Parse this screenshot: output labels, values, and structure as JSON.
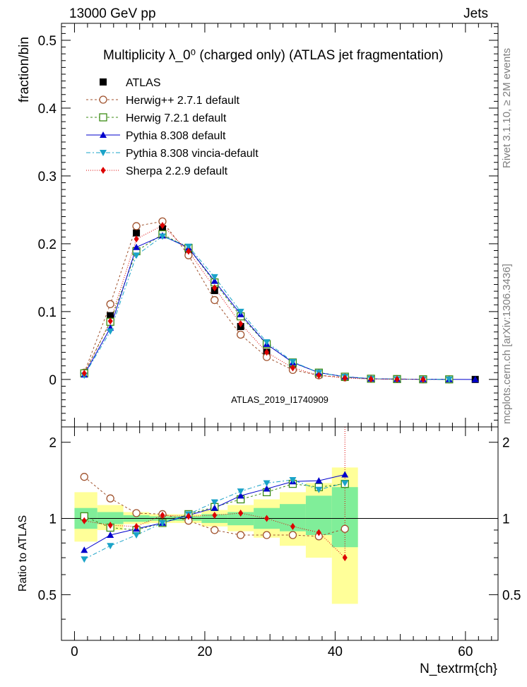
{
  "header": {
    "left": "13000 GeV pp",
    "right": "Jets"
  },
  "side_text": {
    "rivet": "Rivet 3.1.10, ≥ 2M events",
    "mcplots": "mcplots.cern.ch [arXiv:1306.3436]"
  },
  "watermark": "ATLAS_2019_I1740909",
  "chart_data": {
    "type": "line",
    "title": "Multiplicity λ_0⁰ (charged only) (ATLAS jet fragmentation)",
    "xlabel": "N_textrm{ch}",
    "ylabel": "fraction/bin",
    "ratio_ylabel": "Ratio to ATLAS",
    "xlim": [
      -2,
      65
    ],
    "ylim": [
      -0.07,
      0.525
    ],
    "ratio_ylim": [
      0.33,
      2.3
    ],
    "xticks": [
      "0",
      "20",
      "40",
      "60"
    ],
    "yticks": [
      "0",
      "0.1",
      "0.2",
      "0.3",
      "0.4",
      "0.5"
    ],
    "ratio_yticks": [
      "0.5",
      "1",
      "2"
    ],
    "x": [
      1.5,
      5.5,
      9.5,
      13.5,
      17.5,
      21.5,
      25.5,
      29.5,
      33.5,
      37.5,
      41.5,
      45.5,
      49.5,
      53.5,
      57.5,
      61.5
    ],
    "data": {
      "name": "ATLAS",
      "values": [
        0.009,
        0.094,
        0.216,
        0.222,
        0.188,
        0.131,
        0.078,
        0.04,
        0.018,
        0.007,
        0.003,
        0.001,
        0.0005,
        0.0002,
        0.0001,
        0.0
      ]
    },
    "series": [
      {
        "name": "Herwig++ 2.7.1 default",
        "color": "#a0522d",
        "marker": "circle-open",
        "dash": "3,3",
        "values": [
          0.01,
          0.111,
          0.226,
          0.233,
          0.183,
          0.117,
          0.066,
          0.033,
          0.014,
          0.006,
          0.003,
          0.001,
          0.0005,
          0.0002,
          0.0001,
          null
        ],
        "ratio": [
          1.46,
          1.2,
          1.05,
          1.04,
          0.98,
          0.9,
          0.86,
          0.86,
          0.86,
          0.85,
          0.91,
          null,
          null,
          null,
          null,
          null
        ]
      },
      {
        "name": "Herwig 7.2.1 default",
        "color": "#3c8c14",
        "marker": "square-open",
        "dash": "3,3",
        "values": [
          0.009,
          0.085,
          0.189,
          0.214,
          0.194,
          0.143,
          0.093,
          0.052,
          0.025,
          0.01,
          0.004,
          0.001,
          0.0005,
          0.0002,
          0.0001,
          null
        ],
        "ratio": [
          1.02,
          0.92,
          0.9,
          0.96,
          1.04,
          1.11,
          1.19,
          1.27,
          1.37,
          1.33,
          1.37,
          null,
          null,
          null,
          null,
          null
        ]
      },
      {
        "name": "Pythia 8.308 default",
        "color": "#0000cc",
        "marker": "triangle-up",
        "dash": "",
        "values": [
          0.007,
          0.076,
          0.195,
          0.212,
          0.194,
          0.145,
          0.096,
          0.052,
          0.025,
          0.01,
          0.004,
          0.001,
          0.0005,
          0.0002,
          0.0001,
          0.0
        ],
        "ratio": [
          0.75,
          0.86,
          0.91,
          0.96,
          1.03,
          1.1,
          1.23,
          1.31,
          1.4,
          1.41,
          1.49,
          null,
          null,
          null,
          null,
          null
        ]
      },
      {
        "name": "Pythia 8.308 vincia-default",
        "color": "#1aa3c8",
        "marker": "triangle-down",
        "dash": "6,3,2,3",
        "values": [
          0.006,
          0.071,
          0.183,
          0.211,
          0.196,
          0.151,
          0.1,
          0.055,
          0.026,
          0.01,
          0.004,
          0.001,
          0.0005,
          0.0002,
          0.0001,
          null
        ],
        "ratio": [
          0.69,
          0.78,
          0.86,
          0.96,
          1.04,
          1.16,
          1.28,
          1.38,
          1.42,
          1.3,
          1.38,
          null,
          null,
          null,
          null,
          null
        ]
      },
      {
        "name": "Sherpa 2.2.9 default",
        "color": "#dd0000",
        "marker": "diamond",
        "dash": "1,2",
        "values": [
          0.009,
          0.086,
          0.207,
          0.227,
          0.189,
          0.135,
          0.082,
          0.04,
          0.017,
          0.006,
          0.002,
          0.0005,
          0.0002,
          0.0001,
          null,
          null
        ],
        "ratio": [
          0.98,
          0.94,
          0.93,
          1.03,
          1.02,
          1.03,
          1.05,
          1.0,
          0.93,
          0.88,
          0.7,
          null,
          null,
          null,
          null,
          null
        ]
      }
    ],
    "bands": {
      "edges": [
        0,
        3.5,
        7.5,
        11.5,
        15.5,
        19.5,
        23.5,
        27.5,
        31.5,
        35.5,
        39.5,
        43.5
      ],
      "stat_low": [
        0.91,
        0.95,
        0.97,
        0.98,
        0.98,
        0.96,
        0.94,
        0.91,
        0.89,
        0.86,
        0.77
      ],
      "stat_high": [
        1.1,
        1.06,
        1.03,
        1.02,
        1.02,
        1.04,
        1.06,
        1.1,
        1.14,
        1.23,
        1.33
      ],
      "total_low": [
        0.81,
        0.9,
        0.95,
        0.96,
        0.96,
        0.93,
        0.89,
        0.84,
        0.78,
        0.7,
        0.46
      ],
      "total_high": [
        1.27,
        1.13,
        1.06,
        1.04,
        1.04,
        1.08,
        1.13,
        1.19,
        1.27,
        1.38,
        1.59
      ]
    }
  }
}
